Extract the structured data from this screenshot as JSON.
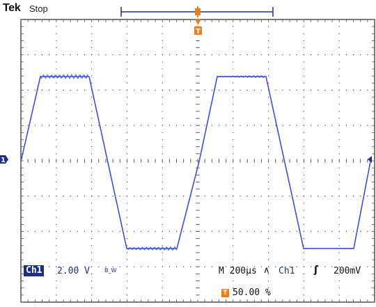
{
  "header": {
    "brand": "Tek",
    "status": "Stop"
  },
  "waveform": {
    "color": "#3a4fd8",
    "ground_marker_color": "#1c2f86",
    "trigger_color": "#ef7d1c"
  },
  "markers": {
    "ch1_label": "1",
    "trigger_label": "T"
  },
  "readout": {
    "channel": "Ch1",
    "volts_div": "2.00 V",
    "bw_symbol": "B_W",
    "timebase": "M 200µs",
    "trigger_slope_symbol": "∧",
    "trigger_channel": "Ch1",
    "trigger_edge_symbol": "ʃ",
    "trigger_level": "200mV",
    "trigger_position_icon": "T",
    "trigger_position": "50.00 %"
  }
}
